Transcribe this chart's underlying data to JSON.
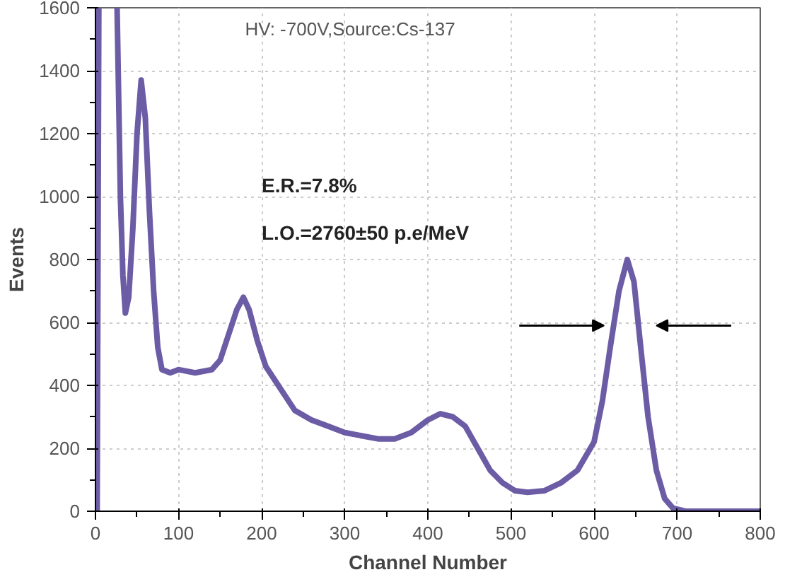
{
  "chart_data": {
    "type": "line",
    "xlabel": "Channel Number",
    "ylabel": "Events",
    "annotations": [
      "HV: -700V,Source:Cs-137",
      "E.R.=7.8%",
      "L.O.=2760±50 p.e/MeV"
    ],
    "x": [
      2,
      4,
      14,
      26,
      30,
      33,
      36,
      40,
      45,
      50,
      55,
      60,
      65,
      70,
      75,
      80,
      90,
      100,
      120,
      140,
      150,
      160,
      170,
      178,
      185,
      195,
      205,
      220,
      240,
      260,
      280,
      300,
      320,
      340,
      360,
      380,
      400,
      415,
      430,
      445,
      460,
      475,
      490,
      505,
      520,
      540,
      560,
      580,
      600,
      610,
      620,
      630,
      640,
      648,
      655,
      665,
      675,
      685,
      695,
      710,
      800
    ],
    "series": [
      {
        "color": "#6b5ca5",
        "values": [
          0,
          1600,
          null,
          1600,
          1000,
          750,
          630,
          680,
          900,
          1200,
          1370,
          1250,
          950,
          700,
          520,
          450,
          440,
          450,
          440,
          450,
          480,
          560,
          640,
          680,
          640,
          540,
          460,
          400,
          320,
          290,
          270,
          250,
          240,
          230,
          230,
          250,
          290,
          310,
          300,
          270,
          200,
          130,
          90,
          65,
          60,
          65,
          90,
          130,
          220,
          350,
          530,
          700,
          800,
          730,
          550,
          300,
          130,
          40,
          10,
          0,
          0
        ]
      }
    ],
    "xlim": [
      0,
      800
    ],
    "ylim": [
      0,
      1600
    ],
    "xticks": [
      0,
      100,
      200,
      300,
      400,
      500,
      600,
      700,
      800
    ],
    "yticks": [
      0,
      200,
      400,
      600,
      800,
      1000,
      1200,
      1400,
      1600
    ],
    "grid": true,
    "marker": "none",
    "line_style": "solid"
  }
}
